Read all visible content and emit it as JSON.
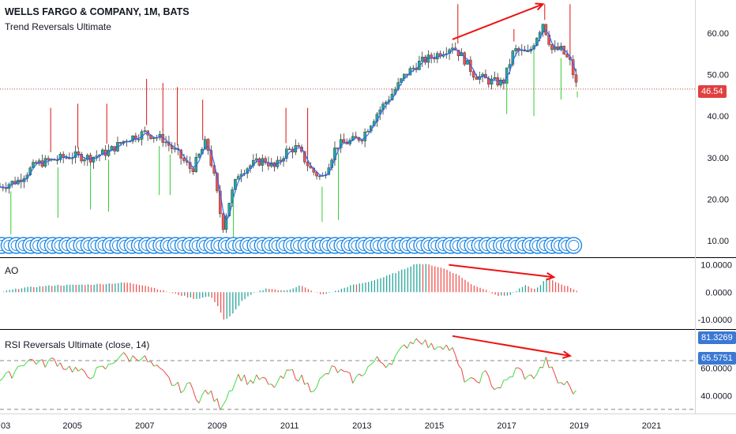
{
  "chart_data": [
    {
      "type": "candlestick",
      "title": "WELLS FARGO & COMPANY, 1M, BATS",
      "subtitle": "Trend Reversals Ultimate",
      "last_price": "46.54",
      "y_ticks": [
        "10.00",
        "20.00",
        "30.00",
        "40.00",
        "50.00",
        "60.00"
      ],
      "ylim": [
        6,
        68
      ],
      "x_ticks": [
        "03",
        "2005",
        "2007",
        "2009",
        "2011",
        "2013",
        "2015",
        "2017",
        "2019",
        "2021"
      ],
      "xlim": [
        2003.0,
        2022.2
      ],
      "close_series": [
        [
          2003.0,
          23.0
        ],
        [
          2003.5,
          24.5
        ],
        [
          2004.0,
          28.5
        ],
        [
          2004.5,
          29.5
        ],
        [
          2005.0,
          30.5
        ],
        [
          2005.5,
          30.0
        ],
        [
          2006.0,
          31.5
        ],
        [
          2006.5,
          34.5
        ],
        [
          2007.0,
          36.0
        ],
        [
          2007.5,
          34.5
        ],
        [
          2007.9,
          31.0
        ],
        [
          2008.3,
          27.0
        ],
        [
          2008.7,
          34.0
        ],
        [
          2008.95,
          24.0
        ],
        [
          2009.15,
          13.0
        ],
        [
          2009.35,
          20.0
        ],
        [
          2009.6,
          26.5
        ],
        [
          2010.0,
          28.5
        ],
        [
          2010.3,
          29.5
        ],
        [
          2010.6,
          27.5
        ],
        [
          2010.9,
          31.5
        ],
        [
          2011.2,
          32.5
        ],
        [
          2011.6,
          27.0
        ],
        [
          2011.9,
          25.0
        ],
        [
          2012.3,
          33.0
        ],
        [
          2012.7,
          34.0
        ],
        [
          2013.0,
          35.0
        ],
        [
          2013.4,
          40.5
        ],
        [
          2013.8,
          45.0
        ],
        [
          2014.2,
          50.0
        ],
        [
          2014.6,
          53.0
        ],
        [
          2015.0,
          54.5
        ],
        [
          2015.5,
          57.0
        ],
        [
          2015.8,
          54.0
        ],
        [
          2016.1,
          50.0
        ],
        [
          2016.5,
          48.5
        ],
        [
          2016.9,
          48.0
        ],
        [
          2017.2,
          56.0
        ],
        [
          2017.6,
          55.0
        ],
        [
          2018.0,
          62.5
        ],
        [
          2018.25,
          56.0
        ],
        [
          2018.5,
          56.0
        ],
        [
          2018.75,
          53.0
        ],
        [
          2018.95,
          46.54
        ]
      ],
      "divergence_arrow": {
        "from": [
          2015.5,
          58.5
        ],
        "to": [
          2018.0,
          67.0
        ]
      }
    },
    {
      "type": "bar",
      "title": "AO",
      "y_ticks": [
        "10.0000",
        "0.0000",
        "-10.0000"
      ],
      "ylim": [
        -13.5,
        12.5
      ],
      "values_anchor": [
        [
          2003.0,
          0.0
        ],
        [
          2003.6,
          1.6
        ],
        [
          2004.5,
          2.5
        ],
        [
          2005.5,
          2.8
        ],
        [
          2006.5,
          3.5
        ],
        [
          2007.0,
          2.5
        ],
        [
          2007.4,
          1.0
        ],
        [
          2007.8,
          -0.5
        ],
        [
          2008.4,
          -2.5
        ],
        [
          2008.8,
          -1.5
        ],
        [
          2009.0,
          -4.5
        ],
        [
          2009.2,
          -10.5
        ],
        [
          2009.4,
          -8.5
        ],
        [
          2009.7,
          -3.0
        ],
        [
          2010.0,
          -0.5
        ],
        [
          2010.4,
          1.5
        ],
        [
          2010.8,
          0.5
        ],
        [
          2011.0,
          1.0
        ],
        [
          2011.3,
          2.5
        ],
        [
          2011.6,
          0.5
        ],
        [
          2011.9,
          -1.0
        ],
        [
          2012.3,
          0.5
        ],
        [
          2012.7,
          2.5
        ],
        [
          2013.1,
          3.5
        ],
        [
          2013.6,
          5.5
        ],
        [
          2014.0,
          7.5
        ],
        [
          2014.5,
          10.5
        ],
        [
          2014.9,
          10.0
        ],
        [
          2015.3,
          8.5
        ],
        [
          2015.7,
          6.0
        ],
        [
          2016.0,
          3.0
        ],
        [
          2016.4,
          1.0
        ],
        [
          2016.8,
          -1.5
        ],
        [
          2017.1,
          -1.0
        ],
        [
          2017.5,
          2.5
        ],
        [
          2017.8,
          1.0
        ],
        [
          2018.1,
          5.0
        ],
        [
          2018.4,
          3.5
        ],
        [
          2018.7,
          2.0
        ],
        [
          2018.95,
          0.5
        ]
      ],
      "divergence_arrow": {
        "from": [
          2015.4,
          10.0
        ],
        "to": [
          2018.3,
          5.5
        ]
      }
    },
    {
      "type": "line",
      "title": "RSI Reversals Ultimate (close, 14)",
      "y_ticks": [
        "40.0000",
        "60.0000"
      ],
      "levels": [
        "81.3269",
        "65.5751"
      ],
      "ylim": [
        27,
        88
      ],
      "series_anchor": [
        [
          2003.0,
          52
        ],
        [
          2003.3,
          55
        ],
        [
          2003.6,
          64
        ],
        [
          2003.9,
          66
        ],
        [
          2004.2,
          63
        ],
        [
          2004.5,
          66
        ],
        [
          2004.8,
          61
        ],
        [
          2005.1,
          59
        ],
        [
          2005.4,
          54
        ],
        [
          2005.7,
          58
        ],
        [
          2006.0,
          61
        ],
        [
          2006.3,
          70
        ],
        [
          2006.6,
          67
        ],
        [
          2006.9,
          69
        ],
        [
          2007.2,
          62
        ],
        [
          2007.5,
          56
        ],
        [
          2007.8,
          48
        ],
        [
          2008.1,
          44
        ],
        [
          2008.3,
          50
        ],
        [
          2008.5,
          34
        ],
        [
          2008.7,
          45
        ],
        [
          2008.9,
          38
        ],
        [
          2009.1,
          32
        ],
        [
          2009.3,
          42
        ],
        [
          2009.6,
          55
        ],
        [
          2009.9,
          50
        ],
        [
          2010.2,
          53
        ],
        [
          2010.5,
          46
        ],
        [
          2010.8,
          52
        ],
        [
          2011.0,
          58
        ],
        [
          2011.3,
          53
        ],
        [
          2011.6,
          45
        ],
        [
          2011.9,
          52
        ],
        [
          2012.2,
          60
        ],
        [
          2012.5,
          56
        ],
        [
          2012.8,
          51
        ],
        [
          2013.1,
          59
        ],
        [
          2013.4,
          66
        ],
        [
          2013.7,
          63
        ],
        [
          2014.0,
          70
        ],
        [
          2014.3,
          79
        ],
        [
          2014.6,
          82
        ],
        [
          2014.9,
          75
        ],
        [
          2015.2,
          78
        ],
        [
          2015.5,
          73
        ],
        [
          2015.8,
          53
        ],
        [
          2016.1,
          49
        ],
        [
          2016.4,
          56
        ],
        [
          2016.7,
          45
        ],
        [
          2017.0,
          50
        ],
        [
          2017.3,
          60
        ],
        [
          2017.6,
          52
        ],
        [
          2017.9,
          58
        ],
        [
          2018.1,
          66
        ],
        [
          2018.4,
          50
        ],
        [
          2018.7,
          48
        ],
        [
          2018.95,
          40
        ]
      ],
      "divergence_arrow": {
        "from": [
          2015.5,
          83.5
        ],
        "to": [
          2018.75,
          69.0
        ]
      }
    }
  ],
  "colors": {
    "bull": "#26a69a",
    "bear": "#ef5350",
    "signal_up": "#33cc33",
    "signal_down": "#dd1111",
    "arrow": "#ee1111",
    "rsi_up": "#44d944",
    "rsi_down": "#ee4444",
    "ma": "#2962ff",
    "price_tag": "#e04040",
    "level_tag": "#3a78d4"
  }
}
